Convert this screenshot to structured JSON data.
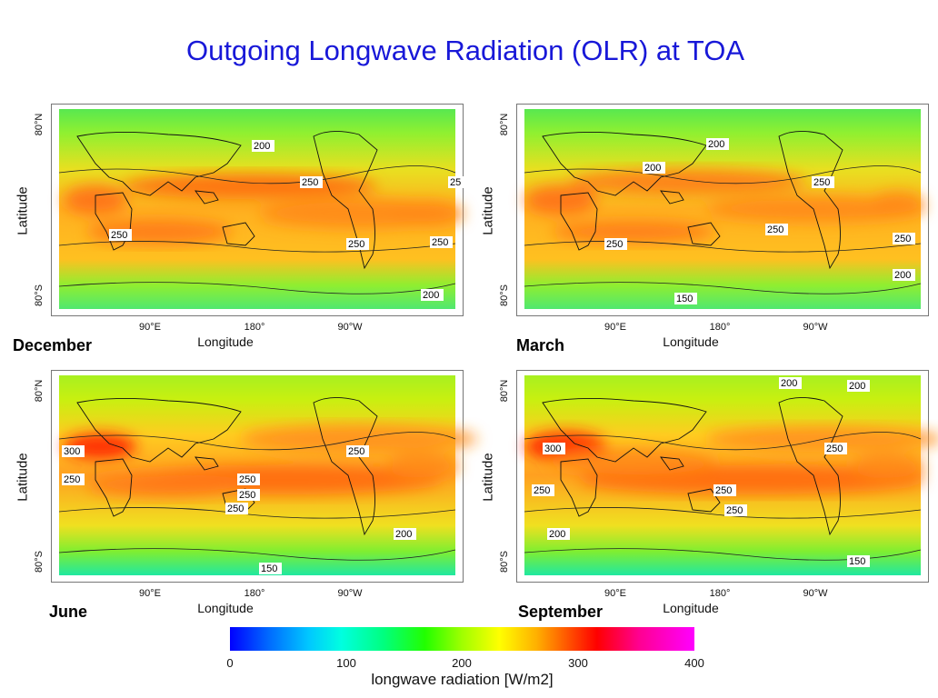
{
  "title": "Outgoing Longwave Radiation (OLR) at TOA",
  "axes": {
    "ylabel": "Latitude",
    "xlabel": "Longitude",
    "ytick_top": "80°N",
    "ytick_bottom": "80°S",
    "xticks": [
      "90°E",
      "180°",
      "90°W"
    ]
  },
  "panels": [
    {
      "season": "December",
      "contour_labels": [
        "200",
        "250",
        "25",
        "250",
        "250",
        "250",
        "200"
      ]
    },
    {
      "season": "March",
      "contour_labels": [
        "200",
        "200",
        "250",
        "250",
        "250",
        "250",
        "200",
        "150"
      ]
    },
    {
      "season": "June",
      "contour_labels": [
        "300",
        "250",
        "250",
        "250",
        "250",
        "250",
        "200",
        "150"
      ]
    },
    {
      "season": "September",
      "contour_labels": [
        "200",
        "200",
        "300",
        "250",
        "250",
        "250",
        "250",
        "200",
        "150"
      ]
    }
  ],
  "colorbar": {
    "ticks": [
      "0",
      "100",
      "200",
      "300",
      "400"
    ],
    "label": "longwave radiation [W/m2]",
    "colors": [
      "#0000ff",
      "#00c8ff",
      "#22ff00",
      "#ffff00",
      "#ff0000",
      "#ff00ff"
    ]
  }
}
